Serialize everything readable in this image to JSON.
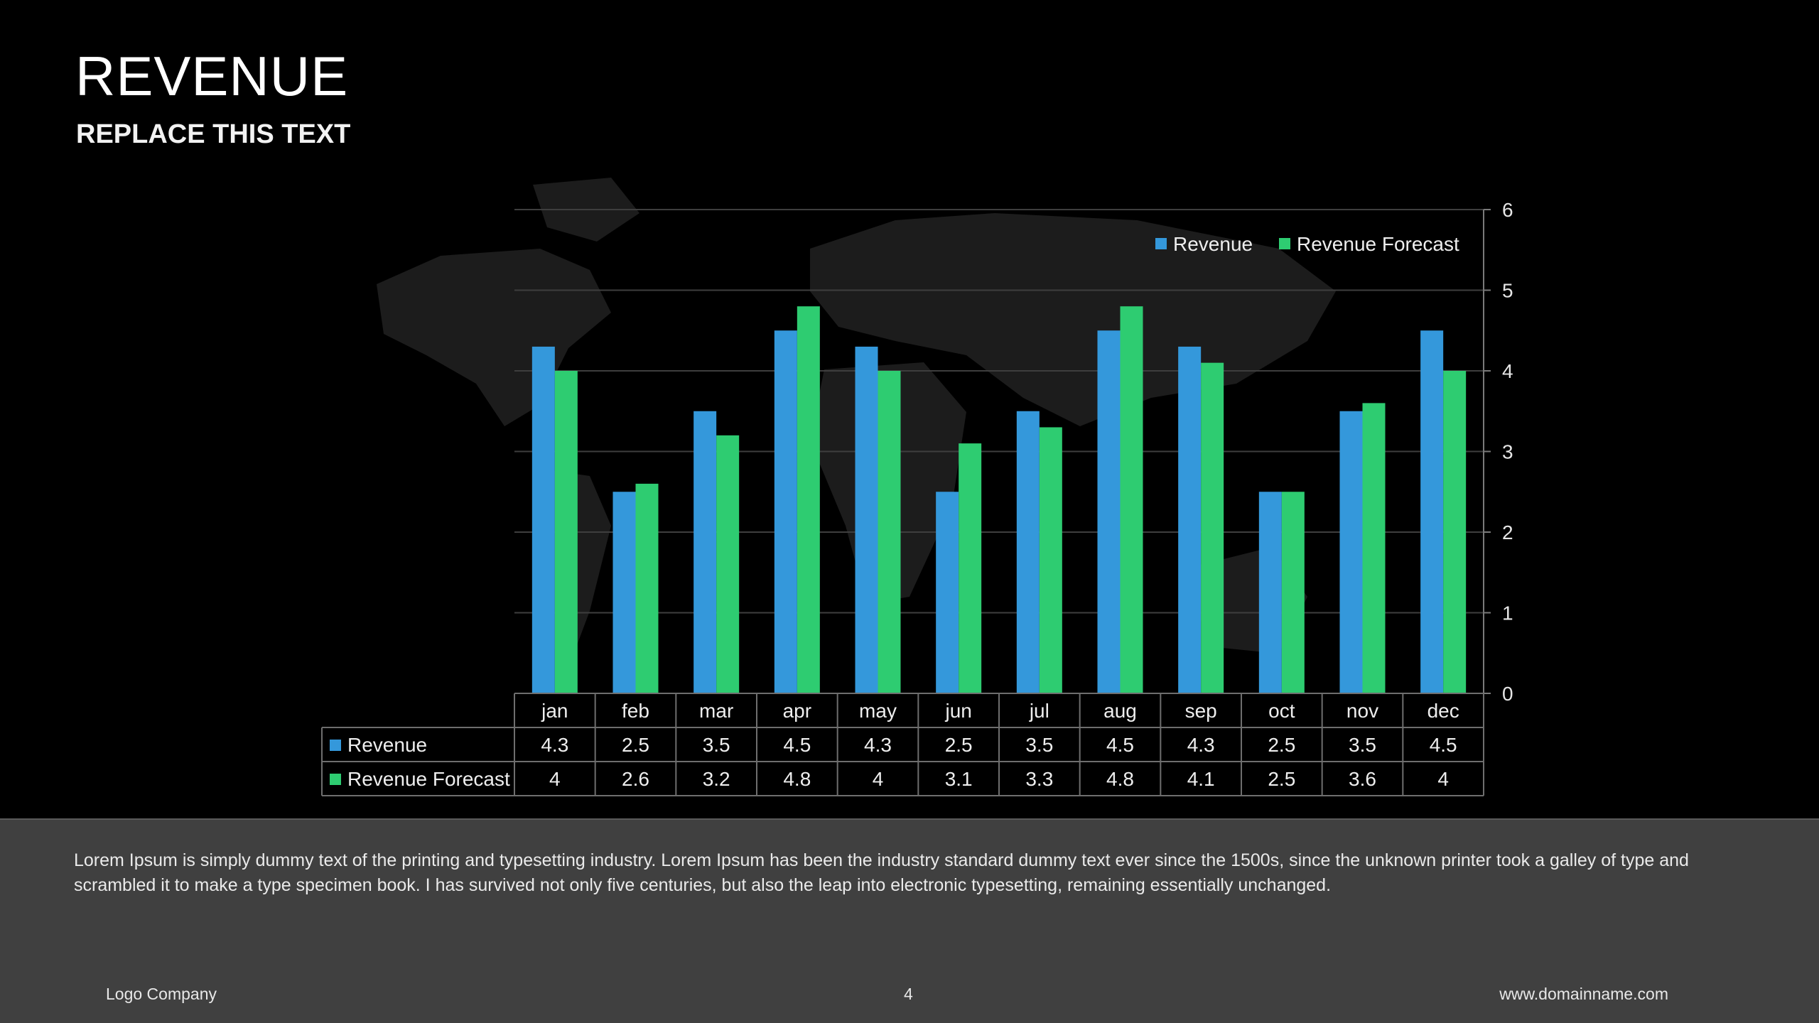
{
  "slide": {
    "title": "REVENUE",
    "subtitle": "REPLACE THIS TEXT",
    "body": "Lorem Ipsum is simply dummy text of the printing and typesetting industry. Lorem Ipsum has been the industry standard dummy text ever since the 1500s, since the unknown printer took a galley of type and scrambled it to make a type specimen book. I has survived not only five centuries, but also the leap into electronic typesetting, remaining essentially unchanged.",
    "footer": {
      "company": "Logo Company",
      "page_number": "4",
      "website": "www.domainname.com"
    }
  },
  "colors": {
    "revenue": "#3498db",
    "forecast": "#2ecc71",
    "background": "#000000",
    "footer_band": "#404040"
  },
  "chart_data": {
    "type": "bar",
    "title": "",
    "xlabel": "",
    "ylabel": "",
    "categories": [
      "jan",
      "feb",
      "mar",
      "apr",
      "may",
      "jun",
      "jul",
      "aug",
      "sep",
      "oct",
      "nov",
      "dec"
    ],
    "series": [
      {
        "name": "Revenue",
        "values": [
          4.3,
          2.5,
          3.5,
          4.5,
          4.3,
          2.5,
          3.5,
          4.5,
          4.3,
          2.5,
          3.5,
          4.5
        ]
      },
      {
        "name": "Revenue Forecast",
        "values": [
          4,
          2.6,
          3.2,
          4.8,
          4,
          3.1,
          3.3,
          4.8,
          4.1,
          2.5,
          3.6,
          4
        ]
      }
    ],
    "ylim": [
      0,
      6
    ],
    "yticks": [
      "0",
      "1",
      "2",
      "3",
      "4",
      "5",
      "6"
    ],
    "y_axis_side": "right",
    "grid": true,
    "legend": "top-right",
    "data_table": true
  }
}
